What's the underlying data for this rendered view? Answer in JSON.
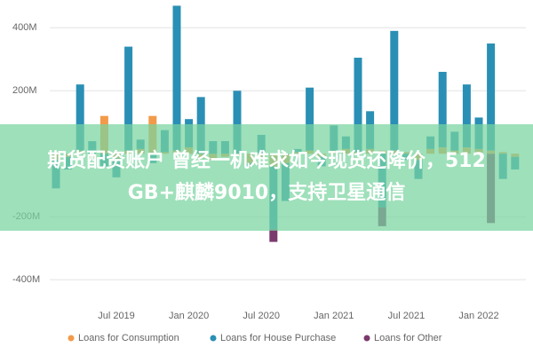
{
  "chart_data": {
    "type": "stacked_bar",
    "categories": [
      null,
      null,
      null,
      null,
      null,
      "Jul 2019",
      null,
      null,
      null,
      null,
      null,
      "Jan 2020",
      null,
      null,
      null,
      null,
      null,
      "Jul 2020",
      null,
      null,
      null,
      null,
      null,
      "Jan 2021",
      null,
      null,
      null,
      null,
      null,
      "Jul 2021",
      null,
      null,
      null,
      null,
      null,
      "Jan 2022",
      null,
      null,
      null
    ],
    "series": [
      {
        "name": "Loans for Consumption",
        "color": "#f39a4a",
        "values": [
          -20,
          -10,
          10,
          -15,
          120,
          -15,
          10,
          15,
          120,
          5,
          10,
          20,
          -15,
          -20,
          -10,
          -5,
          -30,
          -10,
          -40,
          -30,
          5,
          10,
          -10,
          10,
          15,
          5,
          15,
          10,
          10,
          5,
          -20,
          15,
          20,
          10,
          20,
          15,
          10,
          5,
          -10
        ]
      },
      {
        "name": "Loans for House Purchase",
        "color": "#2a8fb5",
        "values": [
          -90,
          -40,
          210,
          40,
          -40,
          -60,
          330,
          30,
          -30,
          70,
          460,
          90,
          180,
          40,
          40,
          200,
          -10,
          60,
          -200,
          -120,
          10,
          200,
          -30,
          80,
          40,
          300,
          120,
          -170,
          380,
          -20,
          -60,
          40,
          240,
          60,
          200,
          100,
          340,
          -80,
          -40
        ]
      },
      {
        "name": "Loans for Other",
        "color": "#7b3a6e",
        "values": [
          0,
          0,
          0,
          0,
          0,
          0,
          0,
          0,
          0,
          0,
          0,
          0,
          0,
          0,
          0,
          0,
          0,
          0,
          -40,
          0,
          0,
          0,
          0,
          0,
          0,
          0,
          0,
          -60,
          0,
          0,
          0,
          0,
          0,
          0,
          0,
          0,
          -220,
          0,
          0
        ]
      }
    ],
    "ylim": [
      -470,
      460
    ],
    "yticks": [
      {
        "value": 400,
        "label": "400M"
      },
      {
        "value": 200,
        "label": "200M"
      },
      {
        "value": -200,
        "label": "-200M"
      },
      {
        "value": -400,
        "label": "-400M"
      }
    ],
    "grid": true
  },
  "banner": [
    "期货配资账户 曾经一机难求如今现货还降价，512",
    "GB+麒麟9010，支持卫星通信"
  ]
}
